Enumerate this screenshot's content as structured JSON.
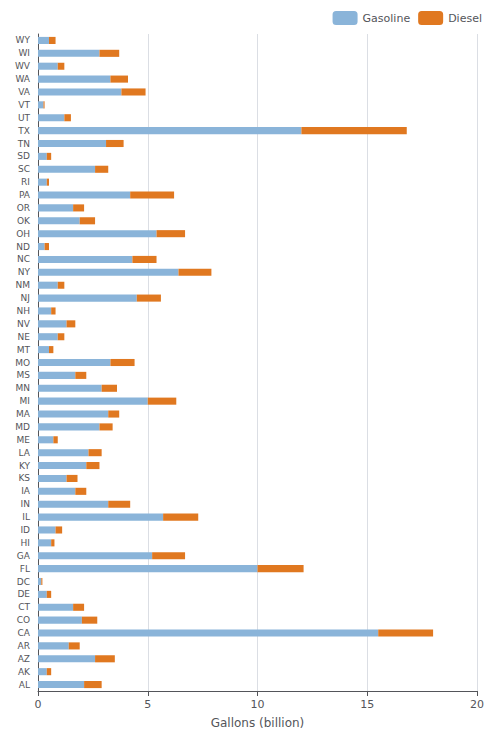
{
  "chart_data": {
    "type": "bar",
    "orientation": "horizontal",
    "stacked": true,
    "xlabel": "Gallons (billion)",
    "categories": [
      "WY",
      "WI",
      "WV",
      "WA",
      "VA",
      "VT",
      "UT",
      "TX",
      "TN",
      "SD",
      "SC",
      "RI",
      "PA",
      "OR",
      "OK",
      "OH",
      "ND",
      "NC",
      "NY",
      "NM",
      "NJ",
      "NH",
      "NV",
      "NE",
      "MT",
      "MO",
      "MS",
      "MN",
      "MI",
      "MA",
      "MD",
      "ME",
      "LA",
      "KY",
      "KS",
      "IA",
      "IN",
      "IL",
      "ID",
      "HI",
      "GA",
      "FL",
      "DC",
      "DE",
      "CT",
      "CO",
      "CA",
      "AR",
      "AZ",
      "AK",
      "AL"
    ],
    "series": [
      {
        "name": "Gasoline",
        "color": "#8AB4D9",
        "values": [
          0.5,
          2.8,
          0.9,
          3.3,
          3.8,
          0.25,
          1.2,
          12.0,
          3.1,
          0.4,
          2.6,
          0.4,
          4.2,
          1.6,
          1.9,
          5.4,
          0.3,
          4.3,
          6.4,
          0.9,
          4.5,
          0.6,
          1.3,
          0.9,
          0.5,
          3.3,
          1.7,
          2.9,
          5.0,
          3.2,
          2.8,
          0.7,
          2.3,
          2.2,
          1.3,
          1.7,
          3.2,
          5.7,
          0.8,
          0.6,
          5.2,
          10.0,
          0.15,
          0.4,
          1.6,
          2.0,
          15.5,
          1.4,
          2.6,
          0.4,
          2.1
        ]
      },
      {
        "name": "Diesel",
        "color": "#E07820",
        "values": [
          0.3,
          0.9,
          0.3,
          0.8,
          1.1,
          0.05,
          0.3,
          4.8,
          0.8,
          0.2,
          0.6,
          0.1,
          2.0,
          0.5,
          0.7,
          1.3,
          0.2,
          1.1,
          1.5,
          0.3,
          1.1,
          0.2,
          0.4,
          0.3,
          0.2,
          1.1,
          0.5,
          0.7,
          1.3,
          0.5,
          0.6,
          0.2,
          0.6,
          0.6,
          0.5,
          0.5,
          1.0,
          1.6,
          0.3,
          0.15,
          1.5,
          2.1,
          0.05,
          0.2,
          0.5,
          0.7,
          2.5,
          0.5,
          0.9,
          0.2,
          0.8
        ]
      }
    ],
    "xlim": [
      0,
      20
    ],
    "xticks": [
      0,
      5,
      10,
      15,
      20
    ],
    "grid": true,
    "legend": "upper right"
  }
}
